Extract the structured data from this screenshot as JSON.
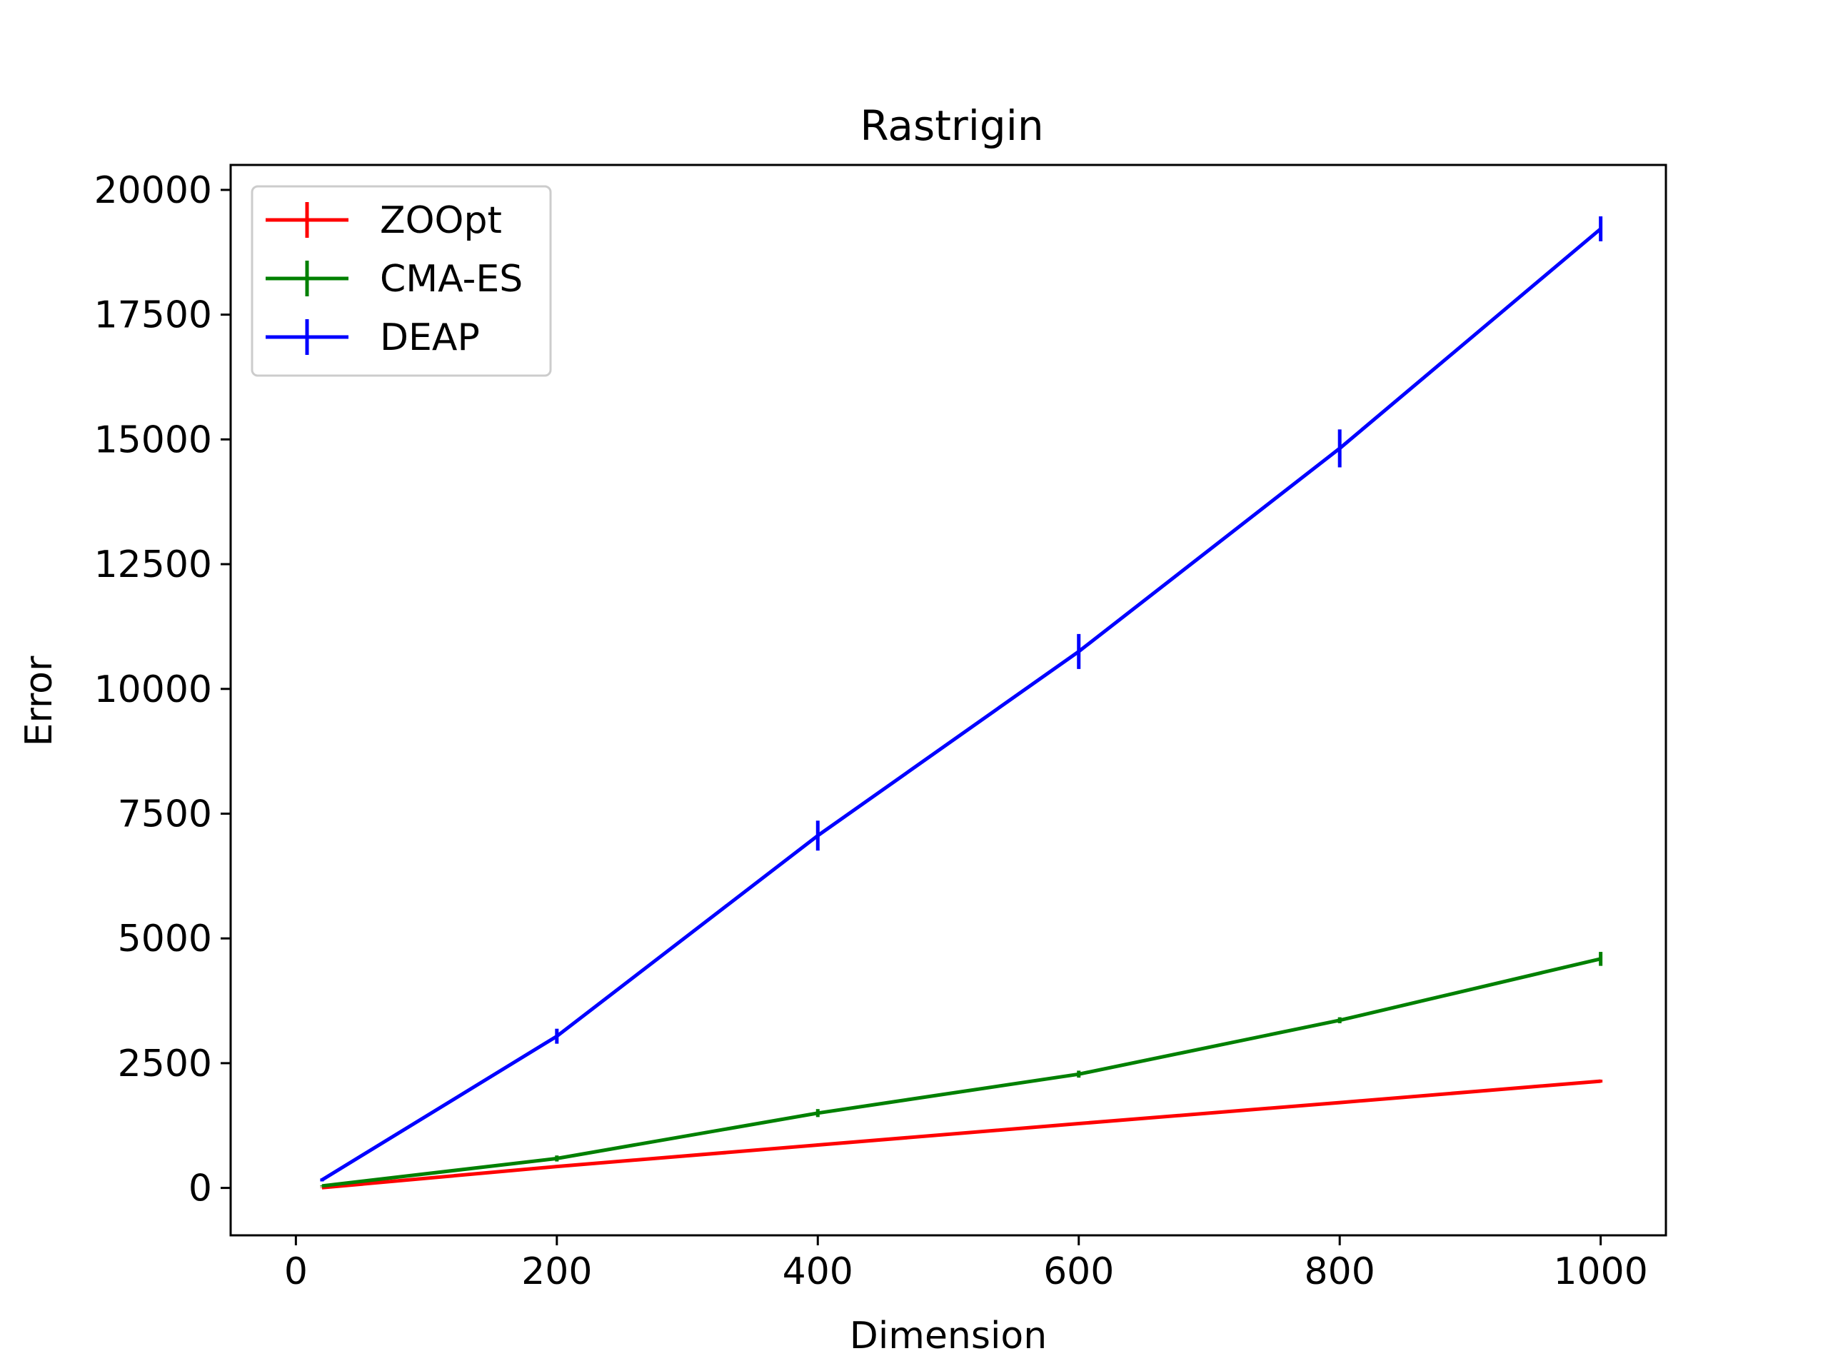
{
  "chart_data": {
    "type": "line",
    "title": "Rastrigin",
    "xlabel": "Dimension",
    "ylabel": "Error",
    "xlim": [
      -50,
      1050
    ],
    "ylim": [
      -950,
      20500
    ],
    "xticks": [
      0,
      200,
      400,
      600,
      800,
      1000
    ],
    "yticks": [
      0,
      2500,
      5000,
      7500,
      10000,
      12500,
      15000,
      17500,
      20000
    ],
    "grid": false,
    "legend_position": "top-left",
    "x": [
      20,
      200,
      400,
      600,
      800,
      1000
    ],
    "series": [
      {
        "name": "ZOOpt",
        "color": "#ff0000",
        "values": [
          5,
          430,
          860,
          1290,
          1710,
          2140
        ],
        "errors": [
          5,
          10,
          15,
          20,
          25,
          30
        ]
      },
      {
        "name": "CMA-ES",
        "color": "#008000",
        "values": [
          40,
          590,
          1500,
          2280,
          3360,
          4590
        ],
        "errors": [
          10,
          60,
          80,
          70,
          60,
          140
        ]
      },
      {
        "name": "DEAP",
        "color": "#0000ff",
        "values": [
          160,
          3040,
          7060,
          10750,
          14820,
          19220
        ],
        "errors": [
          30,
          150,
          300,
          350,
          380,
          250
        ]
      }
    ]
  }
}
